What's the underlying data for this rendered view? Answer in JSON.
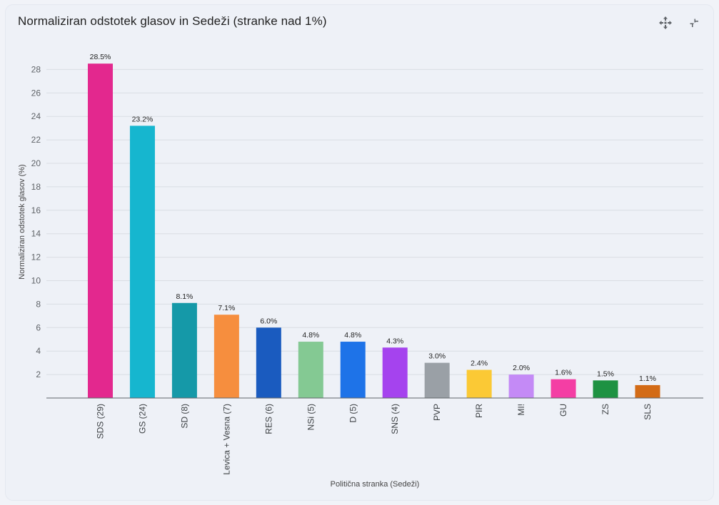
{
  "header": {
    "title": "Normaliziran odstotek glasov in Sedeži (stranke nad 1%)",
    "expand_icon": "expand-arrows-icon",
    "collapse_icon": "collapse-arrows-icon"
  },
  "chart_data": {
    "type": "bar",
    "title": "Normaliziran odstotek glasov in Sedeži (stranke nad 1%)",
    "xlabel": "Politična stranka (Sedeži)",
    "ylabel": "Normaliziran odstotek glasov (%)",
    "ylim": [
      0,
      29
    ],
    "yticks": [
      2,
      4,
      6,
      8,
      10,
      12,
      14,
      16,
      18,
      20,
      22,
      24,
      26,
      28
    ],
    "grid": true,
    "categories": [
      "SDS (29)",
      "GS (24)",
      "SD (8)",
      "Levica + Vesna (7)",
      "RES (6)",
      "NSi (5)",
      "D (5)",
      "SNS (4)",
      "PVP",
      "PIR",
      "MI!",
      "GU",
      "ZS",
      "SLS"
    ],
    "values": [
      28.5,
      23.2,
      8.1,
      7.1,
      6.0,
      4.8,
      4.8,
      4.3,
      3.0,
      2.4,
      2.0,
      1.6,
      1.5,
      1.1
    ],
    "data_labels": [
      "28.5%",
      "23.2%",
      "8.1%",
      "7.1%",
      "6.0%",
      "4.8%",
      "4.8%",
      "4.3%",
      "3.0%",
      "2.4%",
      "2.0%",
      "1.6%",
      "1.5%",
      "1.1%"
    ],
    "colors": [
      "#e3288e",
      "#16b6cf",
      "#1599a8",
      "#f68e3e",
      "#1a5bbf",
      "#84c993",
      "#1e73e8",
      "#a543ee",
      "#9aa0a6",
      "#fbc935",
      "#c48af6",
      "#f43ea4",
      "#1e9242",
      "#d36b16"
    ]
  }
}
